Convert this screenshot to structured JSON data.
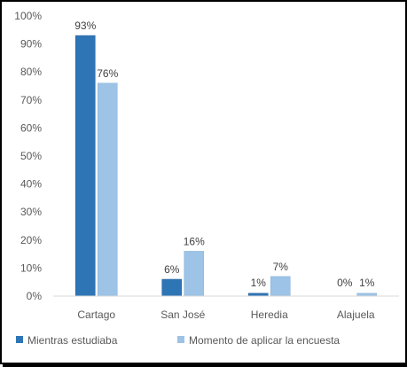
{
  "chart_data": {
    "type": "bar",
    "categories": [
      "Cartago",
      "San José",
      "Heredia",
      "Alajuela"
    ],
    "series": [
      {
        "name": "Mientras estudiaba",
        "values": [
          93,
          6,
          1,
          0
        ],
        "labels": [
          "93%",
          "6%",
          "1%",
          "0%"
        ],
        "color": "#2e75b6"
      },
      {
        "name": "Momento de aplicar la encuesta",
        "values": [
          76,
          16,
          7,
          1
        ],
        "labels": [
          "76%",
          "16%",
          "7%",
          "1%"
        ],
        "color": "#9dc3e6"
      }
    ],
    "y_ticks": [
      "0%",
      "10%",
      "20%",
      "30%",
      "40%",
      "50%",
      "60%",
      "70%",
      "80%",
      "90%",
      "100%"
    ],
    "ylim": [
      0,
      100
    ],
    "grid": false,
    "legend_position": "bottom"
  }
}
